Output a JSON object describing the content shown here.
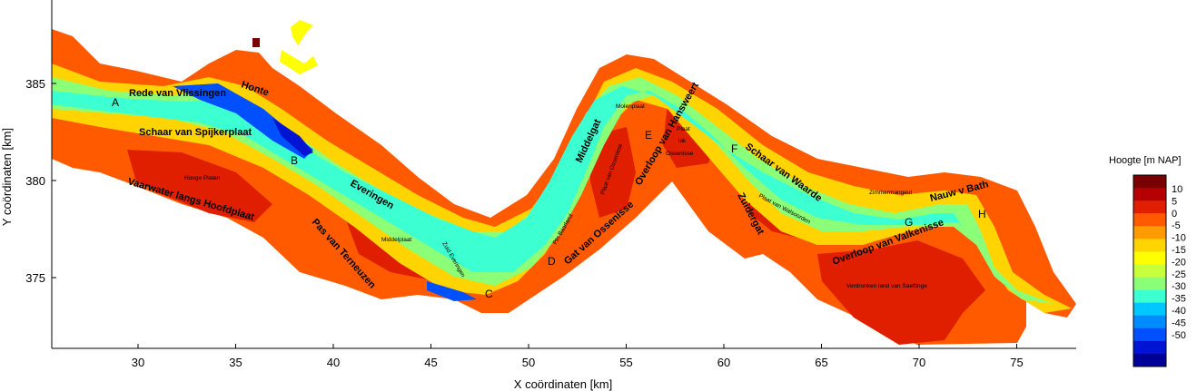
{
  "axes": {
    "xlabel": "X coördinaten [km]",
    "ylabel": "Y coördinaten [km]",
    "xticks": [
      "30",
      "35",
      "40",
      "45",
      "50",
      "55",
      "60",
      "65",
      "70",
      "75"
    ],
    "yticks": [
      "385",
      "380",
      "375"
    ]
  },
  "colorbar": {
    "title": "Hoogte [m NAP]",
    "ticks": [
      "10",
      "5",
      "0",
      "-5",
      "-10",
      "-15",
      "-20",
      "-25",
      "-30",
      "-35",
      "-40",
      "-45",
      "-50"
    ],
    "colors": [
      "#7a0000",
      "#b40000",
      "#e01e00",
      "#ff5a00",
      "#ff9a00",
      "#ffd400",
      "#ffff00",
      "#c8ff3c",
      "#8cff78",
      "#3cffd2",
      "#00c8ff",
      "#008cff",
      "#0050ff",
      "#0014d2",
      "#000096"
    ]
  },
  "channel_labels": {
    "rede": "Rede van Vlissingen",
    "honte": "Honte",
    "schaar_spijkerplaat": "Schaar van Spijkerplaat",
    "vaarwater": "Vaarwater langs Hoofdplaat",
    "everingen": "Everingen",
    "pas_terneuzen": "Pas van Terneuzen",
    "middelgat": "Middelgat",
    "gat_ossenisse": "Gat van Ossenisse",
    "overloop_hansweert": "Overloop van Hansweert",
    "schaar_waarde": "Schaar van Waarde",
    "zuidergat": "Zuidergat",
    "overloop_valkenisse": "Overloop van Valkenisse",
    "nauw_bath": "Nauw v Bath"
  },
  "shoal_labels": {
    "hooge_platen": "Hooge Platen",
    "middelplaat": "Middelplaat",
    "zuid_everingen": "Zuid Everingen",
    "plaat_ossenisse": "Plaat van Ossenisse",
    "molenplaat": "Molenplaat",
    "ptn_baarland": "Ptn Baarland",
    "plaat_lak": "Plaat",
    "lak": "lak",
    "ossenisse": "Ossenisse",
    "plaat_walsoorden": "Plaat van Walsoorden",
    "zimmermangeul": "Zimmermangeul",
    "verdronken": "Verdronken land van Saeftinge"
  },
  "points": [
    "A",
    "B",
    "C",
    "D",
    "E",
    "F",
    "G",
    "H"
  ]
}
